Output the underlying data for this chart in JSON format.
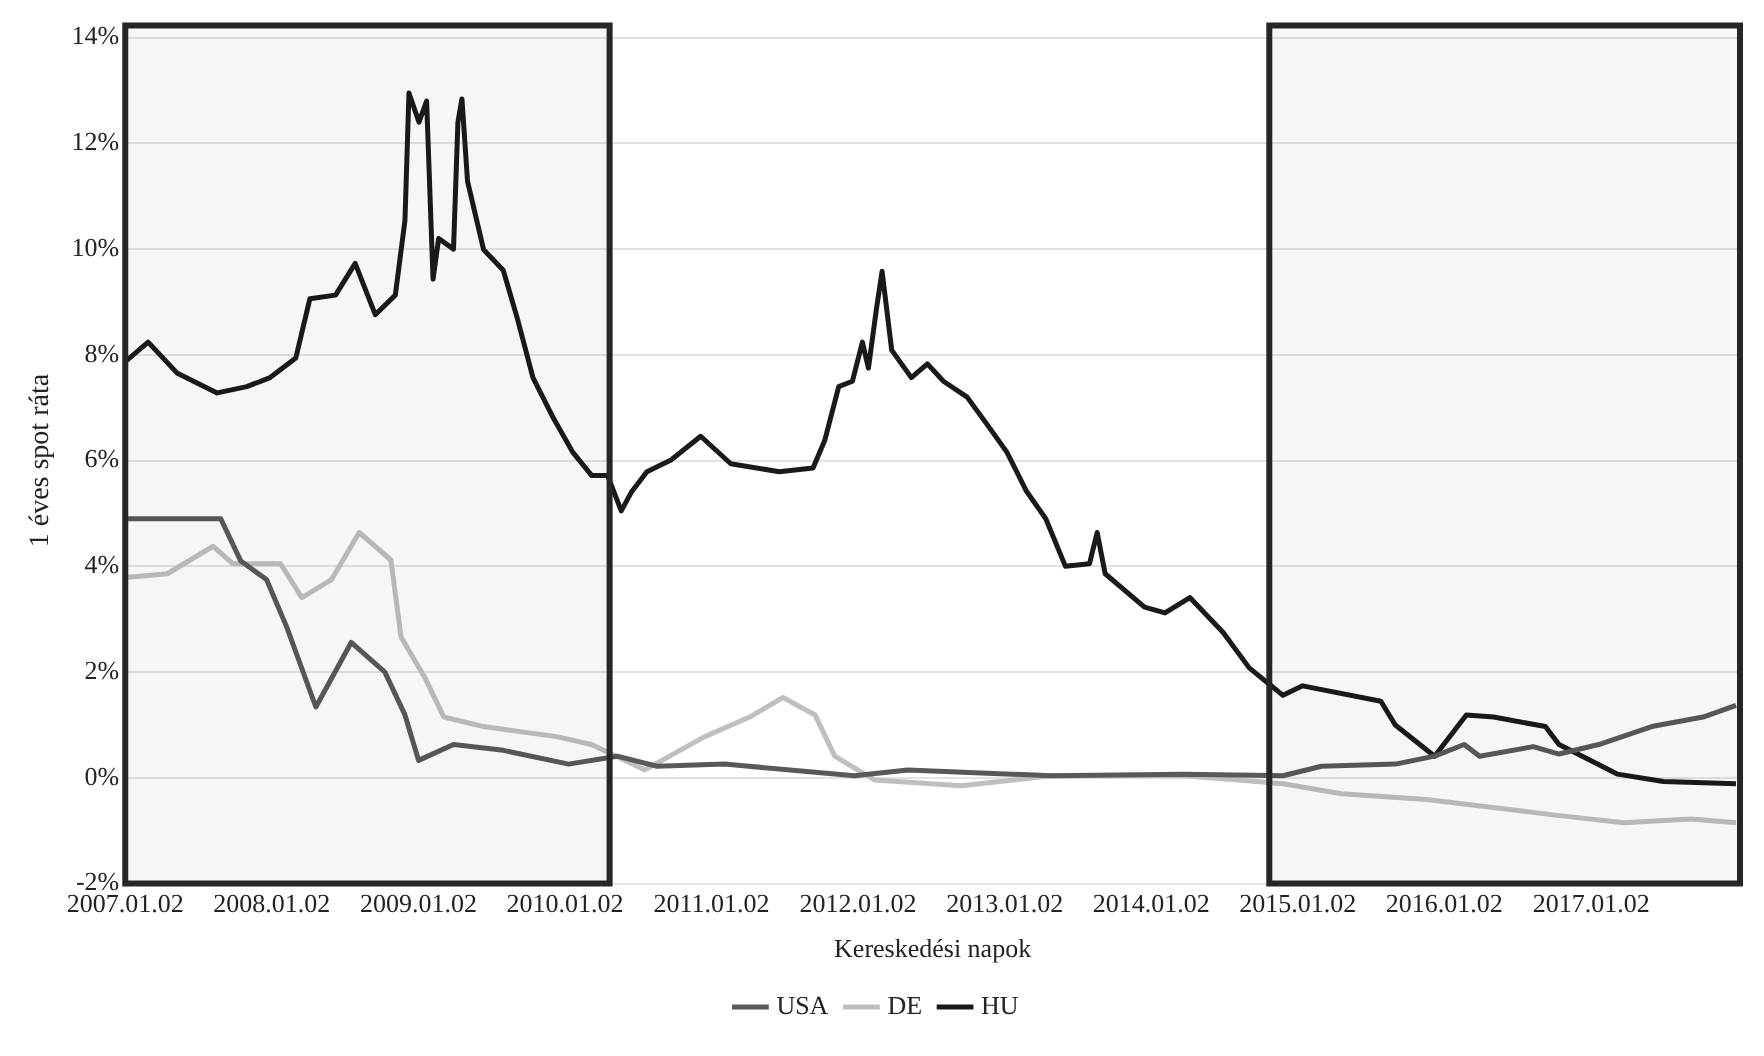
{
  "chart_data": {
    "type": "line",
    "xlabel": "Kereskedési napok",
    "ylabel": "1 éves spot ráta",
    "xlim": [
      "2007-01-02",
      "2018-01-08"
    ],
    "ylim": [
      -2,
      14
    ],
    "xticks": [
      {
        "value": "2007-01-02",
        "label": "2007.01.02"
      },
      {
        "value": "2008-01-02",
        "label": "2008.01.02"
      },
      {
        "value": "2009-01-02",
        "label": "2009.01.02"
      },
      {
        "value": "2010-01-02",
        "label": "2010.01.02"
      },
      {
        "value": "2011-01-02",
        "label": "2011.01.02"
      },
      {
        "value": "2012-01-02",
        "label": "2012.01.02"
      },
      {
        "value": "2013-01-02",
        "label": "2013.01.02"
      },
      {
        "value": "2014-01-02",
        "label": "2014.01.02"
      },
      {
        "value": "2015-01-02",
        "label": "2015.01.02"
      },
      {
        "value": "2016-01-02",
        "label": "2016.01.02"
      },
      {
        "value": "2017-01-02",
        "label": "2017.01.02"
      }
    ],
    "yticks": [
      {
        "value": -2,
        "label": "-2%"
      },
      {
        "value": 0,
        "label": "0%"
      },
      {
        "value": 2,
        "label": "2%"
      },
      {
        "value": 4,
        "label": "4%"
      },
      {
        "value": 6,
        "label": "6%"
      },
      {
        "value": 8,
        "label": "8%"
      },
      {
        "value": 10,
        "label": "10%"
      },
      {
        "value": 12,
        "label": "12%"
      },
      {
        "value": 14,
        "label": "14%"
      }
    ],
    "grid": "y",
    "legend": "bottom",
    "marker": "none",
    "line_style": "solid",
    "bands": [
      {
        "axis": "x",
        "from": "2007-01-02",
        "to": "2010-04-23",
        "color": "#262626"
      },
      {
        "axis": "x",
        "from": "2014-10-23",
        "to": "2018-01-08",
        "color": "#262626"
      }
    ],
    "series": [
      {
        "name": "USA",
        "color": "#595959",
        "x": [
          "2007-01-02",
          "2007-08-28",
          "2007-10-17",
          "2007-12-20",
          "2008-02-08",
          "2008-04-21",
          "2008-07-18",
          "2008-10-10",
          "2008-11-29",
          "2009-01-02",
          "2009-03-30",
          "2009-08-01",
          "2010-01-11",
          "2010-05-12",
          "2010-08-19",
          "2011-02-04",
          "2011-12-24",
          "2012-05-05",
          "2013-04-28",
          "2014-03-23",
          "2014-11-26",
          "2015-03-02",
          "2015-09-02",
          "2015-12-09",
          "2016-02-21",
          "2016-03-30",
          "2016-08-11",
          "2016-10-14",
          "2017-01-21",
          "2017-06-02",
          "2017-10-08",
          "2017-12-29"
        ],
        "values": [
          4.9,
          4.9,
          4.1,
          3.75,
          2.86,
          1.34,
          2.56,
          2.0,
          1.19,
          0.33,
          0.63,
          0.52,
          0.26,
          0.41,
          0.22,
          0.26,
          0.04,
          0.15,
          0.04,
          0.07,
          0.04,
          0.22,
          0.26,
          0.41,
          0.63,
          0.41,
          0.59,
          0.45,
          0.63,
          0.97,
          1.15,
          1.37
        ]
      },
      {
        "name": "DE",
        "color": "#bfbfbf",
        "x": [
          "2007-01-02",
          "2007-04-17",
          "2007-08-09",
          "2007-09-27",
          "2008-01-24",
          "2008-03-17",
          "2008-05-30",
          "2008-08-07",
          "2008-10-25",
          "2008-11-19",
          "2009-01-18",
          "2009-03-06",
          "2009-06-13",
          "2009-12-12",
          "2010-03-09",
          "2010-07-20",
          "2010-12-16",
          "2011-04-07",
          "2011-06-29",
          "2011-09-17",
          "2011-11-05",
          "2012-02-12",
          "2012-09-16",
          "2013-04-28",
          "2014-03-23",
          "2014-11-26",
          "2015-04-21",
          "2015-11-19",
          "2016-09-29",
          "2017-03-24",
          "2017-09-09",
          "2017-12-29"
        ],
        "values": [
          3.79,
          3.86,
          4.38,
          4.05,
          4.05,
          3.41,
          3.75,
          4.64,
          4.12,
          2.67,
          1.89,
          1.15,
          0.97,
          0.78,
          0.63,
          0.15,
          0.78,
          1.15,
          1.52,
          1.19,
          0.41,
          -0.04,
          -0.15,
          0.04,
          0.04,
          -0.11,
          -0.3,
          -0.41,
          -0.7,
          -0.85,
          -0.78,
          -0.85
        ]
      },
      {
        "name": "HU",
        "color": "#1a1a1a",
        "x": [
          "2007-01-02",
          "2007-02-28",
          "2007-05-12",
          "2007-08-19",
          "2007-11-01",
          "2007-12-29",
          "2008-03-02",
          "2008-04-06",
          "2008-06-09",
          "2008-07-28",
          "2008-09-16",
          "2008-11-05",
          "2008-11-29",
          "2008-12-09",
          "2009-01-03",
          "2009-01-22",
          "2009-02-07",
          "2009-02-21",
          "2009-03-30",
          "2009-04-10",
          "2009-04-20",
          "2009-05-04",
          "2009-06-13",
          "2009-08-01",
          "2009-09-05",
          "2009-10-14",
          "2009-12-02",
          "2010-01-21",
          "2010-03-09",
          "2010-04-18",
          "2010-05-22",
          "2010-06-16",
          "2010-07-25",
          "2010-09-23",
          "2010-12-06",
          "2011-02-19",
          "2011-06-20",
          "2011-09-12",
          "2011-10-11",
          "2011-11-15",
          "2011-12-19",
          "2012-01-13",
          "2012-01-28",
          "2012-02-17",
          "2012-03-02",
          "2012-03-26",
          "2012-05-14",
          "2012-06-23",
          "2012-08-02",
          "2012-09-30",
          "2012-11-19",
          "2013-01-07",
          "2013-02-25",
          "2013-04-14",
          "2013-06-02",
          "2013-08-01",
          "2013-08-20",
          "2013-09-09",
          "2013-12-16",
          "2014-02-05",
          "2014-04-08",
          "2014-06-30",
          "2014-09-03",
          "2014-11-26",
          "2015-01-14",
          "2015-07-28",
          "2015-09-02",
          "2015-12-09",
          "2016-02-26",
          "2016-05-04",
          "2016-09-10",
          "2016-10-14",
          "2017-03-09",
          "2017-07-01",
          "2017-12-29"
        ],
        "values": [
          7.87,
          8.24,
          7.65,
          7.28,
          7.4,
          7.57,
          7.94,
          9.06,
          9.13,
          9.73,
          8.76,
          9.13,
          10.54,
          12.95,
          12.4,
          12.8,
          9.43,
          10.2,
          10.0,
          12.4,
          12.84,
          11.28,
          9.99,
          9.6,
          8.69,
          7.57,
          6.83,
          6.16,
          5.72,
          5.72,
          5.05,
          5.4,
          5.79,
          6.01,
          6.46,
          5.94,
          5.79,
          5.86,
          6.38,
          7.4,
          7.5,
          8.24,
          7.75,
          8.87,
          9.58,
          8.09,
          7.57,
          7.83,
          7.5,
          7.2,
          6.68,
          6.16,
          5.42,
          4.9,
          4.0,
          4.05,
          4.64,
          3.86,
          3.23,
          3.12,
          3.41,
          2.75,
          2.08,
          1.56,
          1.74,
          1.45,
          1.0,
          0.41,
          1.19,
          1.15,
          0.97,
          0.63,
          0.07,
          -0.07,
          -0.11
        ]
      }
    ]
  }
}
